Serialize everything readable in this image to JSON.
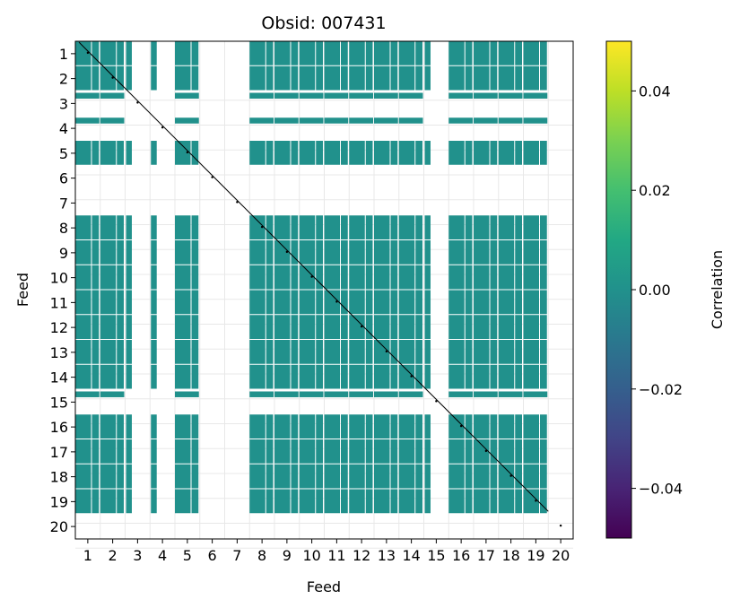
{
  "chart_data": {
    "type": "heatmap",
    "title": "Obsid: 007431",
    "xlabel": "Feed",
    "ylabel": "Feed",
    "x_ticks": [
      "1",
      "2",
      "3",
      "4",
      "5",
      "6",
      "7",
      "8",
      "9",
      "10",
      "11",
      "12",
      "13",
      "14",
      "15",
      "16",
      "17",
      "18",
      "19",
      "20"
    ],
    "y_ticks": [
      "1",
      "2",
      "3",
      "4",
      "5",
      "6",
      "7",
      "8",
      "9",
      "10",
      "11",
      "12",
      "13",
      "14",
      "15",
      "16",
      "17",
      "18",
      "19",
      "20"
    ],
    "blank_feeds": [
      6,
      7
    ],
    "partial_feeds": [
      3,
      4,
      15
    ],
    "cell_value": 0.0,
    "colorbar": {
      "label": "Correlation",
      "colormap": "viridis",
      "range": [
        -0.05,
        0.05
      ],
      "ticks": [
        0.04,
        0.02,
        0.0,
        -0.02,
        -0.04
      ],
      "tick_labels": [
        "0.04",
        "0.02",
        "0.00",
        "−0.02",
        "−0.04"
      ]
    },
    "colors": {
      "cell": "#21918c",
      "diagonal": "#000000",
      "grid": "#e8e8e8"
    }
  }
}
